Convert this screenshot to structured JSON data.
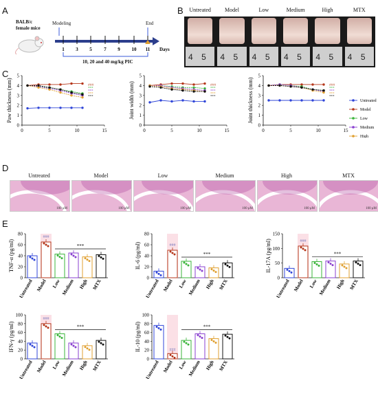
{
  "panels": {
    "A": "A",
    "B": "B",
    "C": "C",
    "D": "D",
    "E": "E"
  },
  "panelA": {
    "mouse_label": "BALB/c\nfemale mice",
    "modeling": "Modeling",
    "end": "End",
    "days": [
      "1",
      "3",
      "5",
      "7",
      "9",
      "10",
      "11"
    ],
    "days_label": "Days",
    "dose": "10, 20 and 40 mg/kg PIC"
  },
  "groups": [
    "Untreated",
    "Model",
    "Low",
    "Medium",
    "High",
    "MTX"
  ],
  "colors": {
    "Untreated": "#2f45d8",
    "Model": "#b5371b",
    "Low": "#3ab43a",
    "Medium": "#8a3fd0",
    "High": "#e0a030",
    "MTX": "#111111"
  },
  "ruler": {
    "digits": [
      "4",
      "5",
      "4",
      "5",
      "4",
      "5",
      "4",
      "5",
      "4",
      "5",
      "4",
      "5"
    ]
  },
  "histology_scale": "100 μM",
  "sig_model": "###",
  "sig_treat": "***",
  "chart_data": [
    {
      "type": "line",
      "ylabel": "Paw thickness (mm)",
      "x": [
        1,
        3,
        5,
        7,
        9,
        11
      ],
      "xlim": [
        0,
        15
      ],
      "ylim": [
        0,
        5
      ],
      "xticks": [
        0,
        5,
        10,
        15
      ],
      "yticks": [
        0,
        1,
        2,
        3,
        4,
        5
      ],
      "series": [
        {
          "name": "Untreated",
          "values": [
            1.7,
            1.75,
            1.75,
            1.75,
            1.75,
            1.75
          ]
        },
        {
          "name": "Model",
          "values": [
            4.0,
            4.1,
            4.1,
            4.1,
            4.2,
            4.2
          ]
        },
        {
          "name": "Low",
          "values": [
            4.0,
            3.9,
            3.8,
            3.6,
            3.4,
            3.2
          ]
        },
        {
          "name": "Medium",
          "values": [
            4.0,
            3.9,
            3.7,
            3.5,
            3.2,
            3.0
          ]
        },
        {
          "name": "High",
          "values": [
            4.0,
            3.8,
            3.6,
            3.3,
            3.0,
            2.8
          ]
        },
        {
          "name": "MTX",
          "values": [
            4.0,
            4.0,
            3.8,
            3.6,
            3.3,
            3.1
          ]
        }
      ]
    },
    {
      "type": "line",
      "ylabel": "Joint width (mm)",
      "x": [
        1,
        3,
        5,
        7,
        9,
        11
      ],
      "xlim": [
        0,
        15
      ],
      "ylim": [
        0,
        5
      ],
      "xticks": [
        0,
        5,
        10,
        15
      ],
      "yticks": [
        0,
        1,
        2,
        3,
        4,
        5
      ],
      "series": [
        {
          "name": "Untreated",
          "values": [
            2.3,
            2.5,
            2.4,
            2.5,
            2.4,
            2.4
          ]
        },
        {
          "name": "Model",
          "values": [
            4.0,
            4.1,
            4.2,
            4.2,
            4.1,
            4.2
          ]
        },
        {
          "name": "Low",
          "values": [
            4.0,
            4.0,
            3.9,
            3.8,
            3.8,
            3.7
          ]
        },
        {
          "name": "Medium",
          "values": [
            4.0,
            4.0,
            3.8,
            3.7,
            3.6,
            3.5
          ]
        },
        {
          "name": "High",
          "values": [
            4.0,
            3.9,
            3.7,
            3.6,
            3.5,
            3.4
          ]
        },
        {
          "name": "MTX",
          "values": [
            3.9,
            3.8,
            3.6,
            3.5,
            3.4,
            3.4
          ]
        }
      ]
    },
    {
      "type": "line",
      "ylabel": "Joint thickness (mm)",
      "x": [
        1,
        3,
        5,
        7,
        9,
        11
      ],
      "xlim": [
        0,
        15
      ],
      "ylim": [
        0,
        5
      ],
      "xticks": [
        0,
        5,
        10,
        15
      ],
      "yticks": [
        0,
        1,
        2,
        3,
        4,
        5
      ],
      "series": [
        {
          "name": "Untreated",
          "values": [
            2.5,
            2.5,
            2.5,
            2.5,
            2.5,
            2.5
          ]
        },
        {
          "name": "Model",
          "values": [
            4.0,
            4.1,
            4.1,
            4.1,
            4.1,
            4.1
          ]
        },
        {
          "name": "Low",
          "values": [
            4.0,
            4.1,
            4.0,
            3.9,
            3.6,
            3.5
          ]
        },
        {
          "name": "Medium",
          "values": [
            4.0,
            4.1,
            4.0,
            3.8,
            3.6,
            3.4
          ]
        },
        {
          "name": "High",
          "values": [
            4.0,
            4.0,
            3.9,
            3.8,
            3.5,
            3.3
          ]
        },
        {
          "name": "MTX",
          "values": [
            4.0,
            4.0,
            3.9,
            3.8,
            3.6,
            3.5
          ]
        }
      ]
    },
    {
      "type": "bar",
      "ylabel": "TNF-α (pg/ml)",
      "categories": [
        "Untreated",
        "Model",
        "Low",
        "Medium",
        "High",
        "MTX"
      ],
      "values": [
        40,
        65,
        43,
        45,
        38,
        42
      ],
      "ylim": [
        0,
        80
      ],
      "yticks": [
        0,
        20,
        40,
        60,
        80
      ]
    },
    {
      "type": "bar",
      "ylabel": "IL-6 (pg/ml)",
      "categories": [
        "Untreated",
        "Model",
        "Low",
        "Medium",
        "High",
        "MTX"
      ],
      "values": [
        12,
        50,
        30,
        20,
        18,
        27
      ],
      "ylim": [
        0,
        80
      ],
      "yticks": [
        0,
        20,
        40,
        60,
        80
      ]
    },
    {
      "type": "bar",
      "ylabel": "IL-17A (pg/ml)",
      "categories": [
        "Untreated",
        "Model",
        "Low",
        "Medium",
        "High",
        "MTX"
      ],
      "values": [
        32,
        108,
        55,
        57,
        47,
        57
      ],
      "ylim": [
        0,
        150
      ],
      "yticks": [
        0,
        50,
        100,
        150
      ]
    },
    {
      "type": "bar",
      "ylabel": "IFN-γ (pg/ml)",
      "categories": [
        "Untreated",
        "Model",
        "Low",
        "Medium",
        "High",
        "MTX"
      ],
      "values": [
        36,
        80,
        57,
        36,
        30,
        42
      ],
      "ylim": [
        0,
        100
      ],
      "yticks": [
        0,
        20,
        40,
        60,
        80,
        100
      ]
    },
    {
      "type": "bar",
      "ylabel": "IL-10 (pg/ml)",
      "categories": [
        "Untreated",
        "Model",
        "Low",
        "Medium",
        "High",
        "MTX"
      ],
      "values": [
        76,
        12,
        42,
        57,
        46,
        56
      ],
      "ylim": [
        0,
        100
      ],
      "yticks": [
        0,
        20,
        40,
        60,
        80,
        100
      ]
    }
  ]
}
